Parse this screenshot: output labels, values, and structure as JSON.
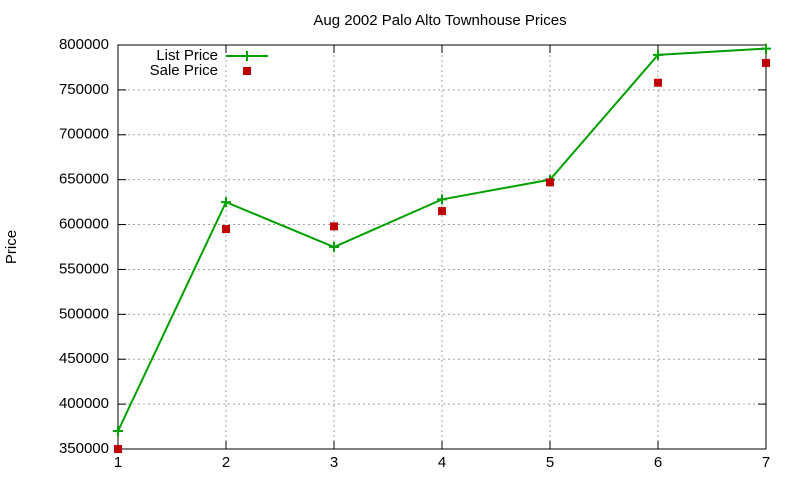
{
  "chart_data": {
    "type": "line",
    "title": "Aug 2002 Palo Alto Townhouse Prices",
    "y_label": "Price",
    "x": [
      1,
      2,
      3,
      4,
      5,
      6,
      7
    ],
    "xlim": [
      1,
      7
    ],
    "xticks": [
      1,
      2,
      3,
      4,
      5,
      6,
      7
    ],
    "ylim": [
      350000,
      800000
    ],
    "yticks": [
      350000,
      400000,
      450000,
      500000,
      550000,
      600000,
      650000,
      700000,
      750000,
      800000
    ],
    "grid": true,
    "legend": "top-left",
    "series": [
      {
        "name": "List Price",
        "color": "#00a000",
        "style": "linespoints",
        "values": [
          370000,
          625000,
          575000,
          628000,
          650000,
          789000,
          796000
        ]
      },
      {
        "name": "Sale Price",
        "color": "#c00000",
        "style": "points",
        "values": [
          350000,
          595000,
          598000,
          615000,
          647000,
          758000,
          780000
        ]
      }
    ]
  }
}
